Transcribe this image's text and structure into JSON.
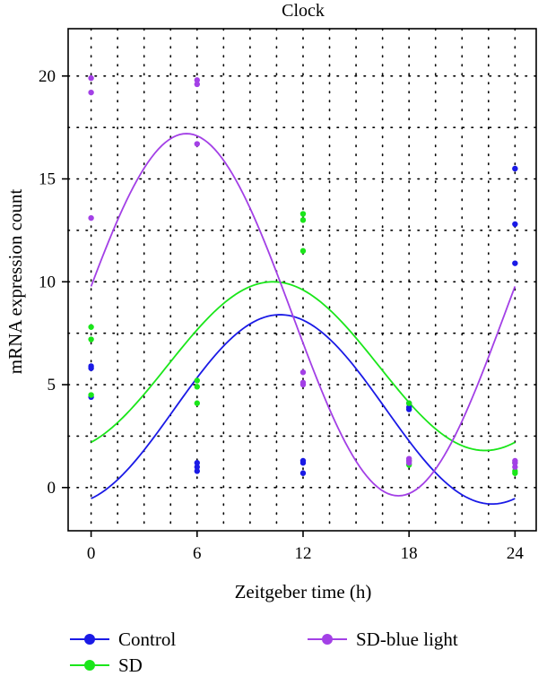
{
  "chart_data": {
    "type": "scatter",
    "title": "Clock",
    "xlabel": "Zeitgeber time (h)",
    "ylabel": "mRNA expression count",
    "xlim": [
      -1.3,
      25.2
    ],
    "ylim": [
      -2.1,
      22.3
    ],
    "xticks": [
      0,
      6,
      12,
      18,
      24
    ],
    "yticks": [
      0,
      5,
      10,
      15,
      20
    ],
    "xgrid": [
      -1.5,
      0,
      1.5,
      3,
      4.5,
      6,
      7.5,
      9,
      10.5,
      12,
      13.5,
      15,
      16.5,
      18,
      19.5,
      21,
      22.5,
      24
    ],
    "ygrid": [
      -2.5,
      0,
      2.5,
      5,
      7.5,
      10,
      12.5,
      15,
      17.5,
      20
    ],
    "grid": true,
    "legend_position": "bottom",
    "series": [
      {
        "name": "Control",
        "color": "#1a1ae6",
        "points": [
          [
            0,
            5.9
          ],
          [
            0,
            5.8
          ],
          [
            0,
            4.4
          ],
          [
            6,
            1.2
          ],
          [
            6,
            1.0
          ],
          [
            6,
            0.8
          ],
          [
            12,
            1.3
          ],
          [
            12,
            1.2
          ],
          [
            12,
            0.7
          ],
          [
            18,
            4.1
          ],
          [
            18,
            3.9
          ],
          [
            18,
            3.8
          ],
          [
            24,
            15.5
          ],
          [
            24,
            12.8
          ],
          [
            24,
            10.9
          ]
        ],
        "fit": {
          "mesor": 3.8,
          "amplitude": 4.6,
          "peak_hour": 10.7,
          "period": 24
        }
      },
      {
        "name": "SD",
        "color": "#1ae61a",
        "points": [
          [
            0,
            7.8
          ],
          [
            0,
            7.2
          ],
          [
            0,
            4.5
          ],
          [
            6,
            5.2
          ],
          [
            6,
            4.9
          ],
          [
            6,
            4.1
          ],
          [
            12,
            13.3
          ],
          [
            12,
            13.0
          ],
          [
            12,
            11.5
          ],
          [
            18,
            4.1
          ],
          [
            18,
            1.3
          ],
          [
            18,
            1.1
          ],
          [
            24,
            1.2
          ],
          [
            24,
            0.8
          ],
          [
            24,
            0.7
          ]
        ],
        "fit": {
          "mesor": 5.9,
          "amplitude": 4.1,
          "peak_hour": 10.3,
          "period": 24
        }
      },
      {
        "name": "SD-blue light",
        "color": "#a340e6",
        "points": [
          [
            0,
            19.9
          ],
          [
            0,
            19.2
          ],
          [
            0,
            13.1
          ],
          [
            6,
            19.8
          ],
          [
            6,
            19.6
          ],
          [
            6,
            16.7
          ],
          [
            12,
            5.6
          ],
          [
            12,
            5.1
          ],
          [
            12,
            5.0
          ],
          [
            18,
            1.4
          ],
          [
            18,
            1.3
          ],
          [
            18,
            1.2
          ],
          [
            24,
            1.3
          ],
          [
            24,
            1.2
          ],
          [
            24,
            1.0
          ]
        ],
        "fit": {
          "mesor": 8.4,
          "amplitude": 8.8,
          "peak_hour": 5.4,
          "period": 24
        }
      }
    ]
  }
}
